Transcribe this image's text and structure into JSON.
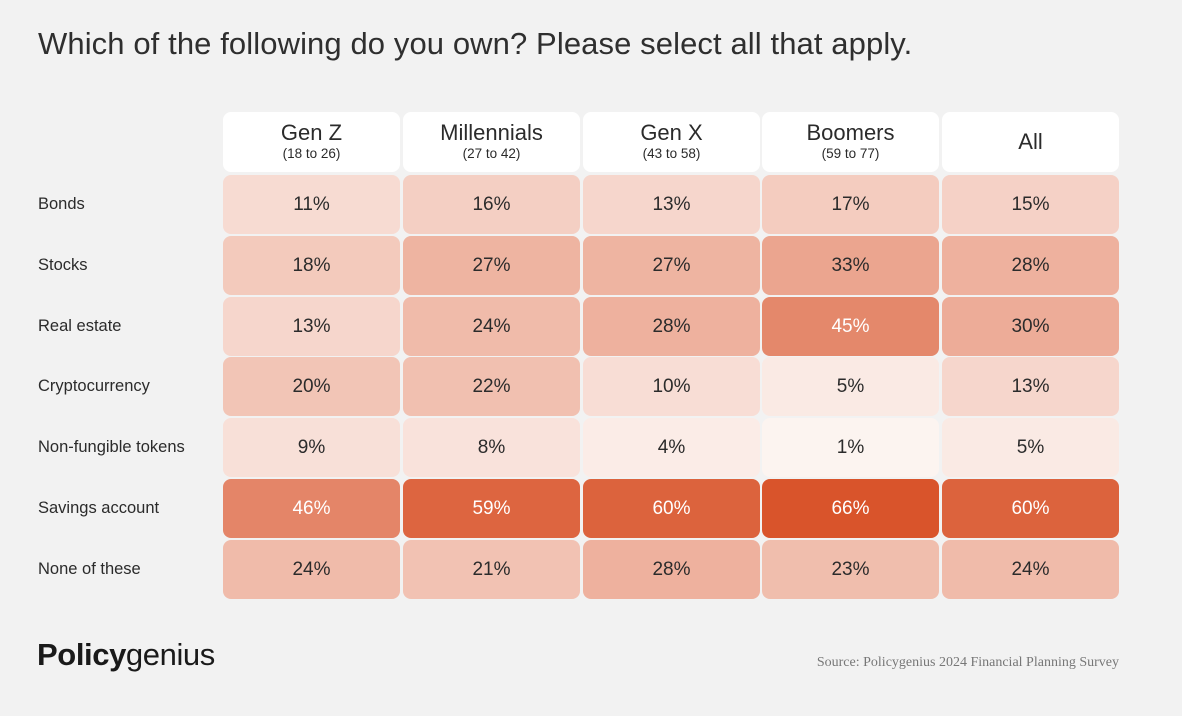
{
  "title": "Which of the following do you own? Please select all that apply.",
  "chart_data": {
    "type": "table",
    "columns": [
      {
        "name": "Gen Z",
        "range": "(18 to 26)"
      },
      {
        "name": "Millennials",
        "range": "(27 to 42)"
      },
      {
        "name": "Gen X",
        "range": "(43 to 58)"
      },
      {
        "name": "Boomers",
        "range": "(59 to 77)"
      },
      {
        "name": "All",
        "range": ""
      }
    ],
    "rows": [
      {
        "label": "Bonds",
        "values": [
          11,
          16,
          13,
          17,
          15
        ]
      },
      {
        "label": "Stocks",
        "values": [
          18,
          27,
          27,
          33,
          28
        ]
      },
      {
        "label": "Real estate",
        "values": [
          13,
          24,
          28,
          45,
          30
        ]
      },
      {
        "label": "Cryptocurrency",
        "values": [
          20,
          22,
          10,
          5,
          13
        ]
      },
      {
        "label": "Non-fungible tokens",
        "values": [
          9,
          8,
          4,
          1,
          5
        ]
      },
      {
        "label": "Savings account",
        "values": [
          46,
          59,
          60,
          66,
          60
        ]
      },
      {
        "label": "None of these",
        "values": [
          24,
          21,
          28,
          23,
          24
        ]
      }
    ],
    "value_suffix": "%",
    "color_scale": {
      "low": "#fdf6f3",
      "high": "#d9542b",
      "min": 0,
      "max": 66
    }
  },
  "logo": {
    "bold": "Policy",
    "regular": "genius"
  },
  "source": "Source: Policygenius 2024 Financial Planning Survey"
}
